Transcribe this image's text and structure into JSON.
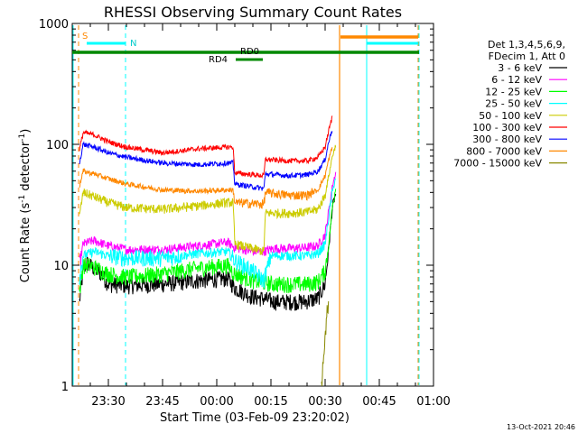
{
  "chart_data": {
    "type": "line",
    "title": "RHESSI Observing Summary Count Rates",
    "xlabel": "Start Time (03-Feb-09 23:20:02)",
    "ylabel_main": "Count Rate (s",
    "ylabel_sup1": "-1",
    "ylabel_mid": " detector",
    "ylabel_sup2": "-1",
    "ylabel_end": ")",
    "yscale": "log",
    "ylim": [
      1,
      1000
    ],
    "xlim_minutes": [
      0,
      100
    ],
    "x_ticks": [
      {
        "m": 10,
        "label": "23:30"
      },
      {
        "m": 25,
        "label": "23:45"
      },
      {
        "m": 40,
        "label": "00:00"
      },
      {
        "m": 55,
        "label": "00:15"
      },
      {
        "m": 70,
        "label": "00:30"
      },
      {
        "m": 85,
        "label": "00:45"
      },
      {
        "m": 100,
        "label": "01:00"
      }
    ],
    "y_ticks": [
      {
        "v": 1,
        "label": "1"
      },
      {
        "v": 10,
        "label": "10"
      },
      {
        "v": 100,
        "label": "100"
      },
      {
        "v": 1000,
        "label": "1000"
      }
    ],
    "legend_header": [
      "Det 1,3,4,5,6,9,",
      "FDecim 1, Att 0"
    ],
    "series": [
      {
        "name": "3 - 6 keV",
        "color": "#000000",
        "pts": [
          [
            2,
            5
          ],
          [
            3,
            9
          ],
          [
            4,
            10.5
          ],
          [
            8,
            8.5
          ],
          [
            10,
            7
          ],
          [
            15,
            6.8
          ],
          [
            25,
            7
          ],
          [
            35,
            7.5
          ],
          [
            43,
            7.8
          ],
          [
            45,
            6.5
          ],
          [
            50,
            5.5
          ],
          [
            53,
            5.3
          ],
          [
            56,
            5
          ],
          [
            60,
            5
          ],
          [
            64,
            5
          ],
          [
            68,
            5.3
          ],
          [
            70,
            7
          ],
          [
            71,
            14
          ],
          [
            72,
            30
          ],
          [
            73,
            40
          ]
        ]
      },
      {
        "name": "6 - 12 keV",
        "color": "#ff00ff",
        "pts": [
          [
            2,
            10
          ],
          [
            3,
            15
          ],
          [
            6,
            16
          ],
          [
            10,
            14.5
          ],
          [
            15,
            13.5
          ],
          [
            25,
            13.5
          ],
          [
            35,
            14.5
          ],
          [
            43,
            15.5
          ],
          [
            45,
            14
          ],
          [
            50,
            13
          ],
          [
            53,
            13
          ],
          [
            56,
            13.8
          ],
          [
            60,
            13.8
          ],
          [
            65,
            14
          ],
          [
            68,
            14.5
          ],
          [
            70,
            18
          ],
          [
            71,
            28
          ],
          [
            72,
            45
          ],
          [
            73,
            60
          ]
        ]
      },
      {
        "name": "12 - 25 keV",
        "color": "#00ff00",
        "pts": [
          [
            2,
            6
          ],
          [
            3,
            10
          ],
          [
            5,
            10
          ],
          [
            10,
            8.5
          ],
          [
            15,
            8
          ],
          [
            25,
            8.5
          ],
          [
            35,
            9.5
          ],
          [
            43,
            10
          ],
          [
            45,
            8.5
          ],
          [
            50,
            7.5
          ],
          [
            53,
            7.2
          ],
          [
            56,
            7
          ],
          [
            60,
            7
          ],
          [
            65,
            7
          ],
          [
            68,
            7.3
          ],
          [
            70,
            9
          ],
          [
            71,
            15
          ],
          [
            72,
            30
          ],
          [
            73,
            45
          ]
        ]
      },
      {
        "name": "25 - 50 keV",
        "color": "#00ffff",
        "pts": [
          [
            2,
            8
          ],
          [
            3,
            12
          ],
          [
            6,
            13
          ],
          [
            10,
            12
          ],
          [
            15,
            11.5
          ],
          [
            25,
            11.5
          ],
          [
            35,
            12.5
          ],
          [
            43,
            13
          ],
          [
            45,
            11
          ],
          [
            50,
            9
          ],
          [
            53,
            7.5
          ],
          [
            55,
            12
          ],
          [
            60,
            12
          ],
          [
            65,
            12
          ],
          [
            68,
            12.5
          ],
          [
            70,
            15
          ],
          [
            71,
            25
          ],
          [
            72,
            40
          ],
          [
            73,
            55
          ]
        ]
      },
      {
        "name": "50 - 100 keV",
        "color": "#cccc00",
        "pts": [
          [
            2,
            25
          ],
          [
            3,
            40
          ],
          [
            5,
            38
          ],
          [
            10,
            33
          ],
          [
            15,
            30
          ],
          [
            25,
            29
          ],
          [
            35,
            31
          ],
          [
            43,
            33
          ],
          [
            44.5,
            33
          ],
          [
            45,
            15
          ],
          [
            53,
            13
          ],
          [
            53.5,
            27
          ],
          [
            60,
            27
          ],
          [
            65,
            27.5
          ],
          [
            68,
            29
          ],
          [
            70,
            38
          ],
          [
            71,
            55
          ],
          [
            72,
            80
          ],
          [
            73,
            100
          ]
        ]
      },
      {
        "name": "100 - 300 keV",
        "color": "#ff0000",
        "pts": [
          [
            2,
            90
          ],
          [
            3,
            125
          ],
          [
            6,
            120
          ],
          [
            10,
            105
          ],
          [
            15,
            95
          ],
          [
            25,
            85
          ],
          [
            35,
            92
          ],
          [
            43,
            95
          ],
          [
            44.5,
            95
          ],
          [
            45,
            58
          ],
          [
            53,
            55
          ],
          [
            53.5,
            75
          ],
          [
            60,
            73
          ],
          [
            65,
            73
          ],
          [
            68,
            78
          ],
          [
            70,
            95
          ],
          [
            71,
            130
          ],
          [
            72,
            170
          ]
        ]
      },
      {
        "name": "300 - 800 keV",
        "color": "#0000ff",
        "pts": [
          [
            2,
            70
          ],
          [
            3,
            100
          ],
          [
            6,
            95
          ],
          [
            10,
            85
          ],
          [
            15,
            78
          ],
          [
            25,
            70
          ],
          [
            35,
            68
          ],
          [
            43,
            70
          ],
          [
            44.5,
            70
          ],
          [
            45,
            47
          ],
          [
            53,
            43
          ],
          [
            53.5,
            57
          ],
          [
            60,
            55
          ],
          [
            65,
            56
          ],
          [
            68,
            60
          ],
          [
            70,
            75
          ],
          [
            71,
            105
          ],
          [
            72,
            135
          ]
        ]
      },
      {
        "name": "800 - 7000 keV",
        "color": "#ff8800",
        "pts": [
          [
            2,
            45
          ],
          [
            3,
            60
          ],
          [
            6,
            57
          ],
          [
            10,
            52
          ],
          [
            15,
            47
          ],
          [
            25,
            42
          ],
          [
            35,
            41
          ],
          [
            43,
            42
          ],
          [
            44.5,
            42
          ],
          [
            45,
            33
          ],
          [
            53,
            32
          ],
          [
            53.5,
            40
          ],
          [
            60,
            38
          ],
          [
            65,
            38
          ],
          [
            68,
            42
          ],
          [
            70,
            55
          ],
          [
            71,
            75
          ],
          [
            72,
            95
          ]
        ]
      },
      {
        "name": "7000 - 15000 keV",
        "color": "#888800",
        "pts": [
          [
            69,
            1
          ],
          [
            70,
            2.5
          ],
          [
            70.5,
            4
          ],
          [
            71,
            5
          ]
        ]
      }
    ],
    "flags": {
      "saa_label": "S",
      "night_label": "N",
      "rd0_label": "RD0",
      "rd4_label": "RD4"
    },
    "footer_date": "13-Oct-2021 20:46"
  }
}
